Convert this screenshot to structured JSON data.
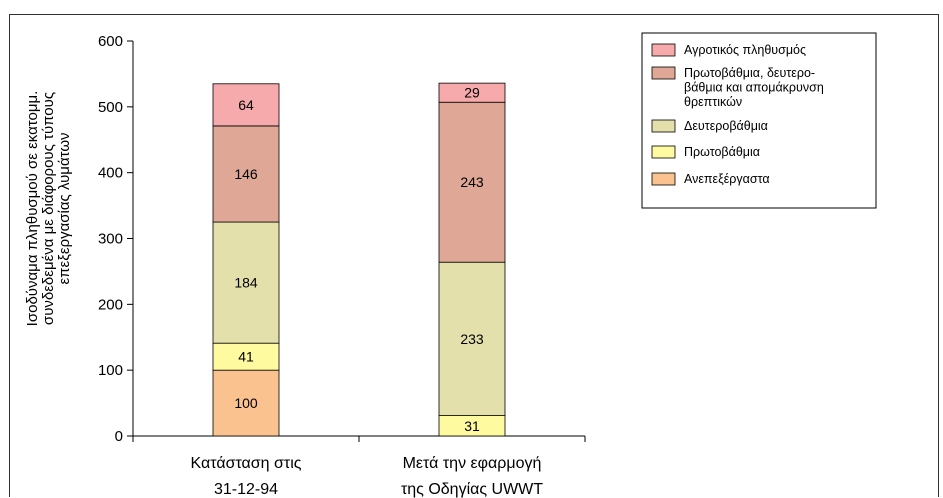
{
  "chart_data": {
    "type": "bar",
    "stacked": true,
    "categories": [
      [
        "Κατάσταση στις",
        "31-12-94"
      ],
      [
        "Μετά την εφαρμογή",
        "της Οδηγίας UWWT"
      ]
    ],
    "ylabel_lines": [
      "Ισοδύναμα πληθυσμού σε εκατομμ.",
      "συνδεδεμένα με διάφορους τύπους",
      "επεξεργασίας λυμάτων"
    ],
    "ylim": [
      0,
      600
    ],
    "yticks": [
      0,
      100,
      200,
      300,
      400,
      500,
      600
    ],
    "legend_position": "top-right",
    "series": [
      {
        "name": "Ανεπεξέργαστα",
        "color": "#f9c28f",
        "values": [
          100,
          0
        ]
      },
      {
        "name": "Πρωτοβάθμια",
        "color": "#fdfaa0",
        "values": [
          41,
          31
        ]
      },
      {
        "name": "Δευτεροβάθμια",
        "color": "#e3e0ac",
        "values": [
          184,
          233
        ]
      },
      {
        "name": "Πρωτοβάθμια, δευτερο-βάθμια και απομάκρυνση θρεπτικών",
        "legend_lines": [
          "Πρωτοβάθμια, δευτερο-",
          "βάθμια και απομάκρυνση",
          "θρεπτικών"
        ],
        "color": "#dea796",
        "values": [
          146,
          243
        ]
      },
      {
        "name": "Αγροτικός πληθυσμός",
        "color": "#f6aaac",
        "values": [
          64,
          29
        ]
      }
    ],
    "legend_order": [
      4,
      3,
      2,
      1,
      0
    ]
  }
}
